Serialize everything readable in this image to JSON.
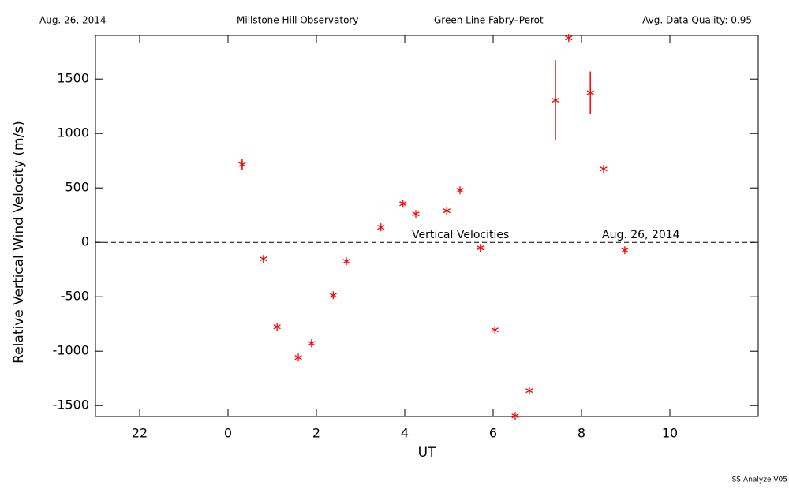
{
  "chart_data": {
    "type": "scatter",
    "header": [
      "Aug. 26, 2014",
      "Millstone Hill Observatory",
      "Green Line Fabry–Perot",
      "Avg. Data Quality: 0.95"
    ],
    "xlabel": "UT",
    "ylabel": "Relative Vertical Wind Velocity (m/s)",
    "annotations": [
      "Vertical Velocities",
      "Aug. 26, 2014"
    ],
    "footer": "SS-Analyze V05",
    "xlim": [
      -3,
      12
    ],
    "xticks": [
      {
        "value": -2,
        "label": "22"
      },
      0,
      2,
      4,
      6,
      8,
      10
    ],
    "ylim": [
      -1600,
      1900
    ],
    "yticks": [
      -1500,
      -1000,
      -500,
      0,
      500,
      1000,
      1500
    ],
    "series": [
      {
        "name": "Vertical Velocities",
        "color": "#ff0000",
        "x": [
          0.32,
          0.8,
          1.11,
          1.59,
          1.89,
          2.38,
          2.68,
          3.46,
          3.96,
          4.25,
          4.95,
          5.25,
          5.71,
          6.04,
          6.5,
          6.82,
          7.41,
          7.71,
          8.2,
          8.5,
          8.98
        ],
        "values": [
          715,
          -152,
          -775,
          -1058,
          -928,
          -486,
          -174,
          138,
          355,
          261,
          290,
          478,
          -51,
          -804,
          -1594,
          -1362,
          1305,
          1877,
          1375,
          674,
          -72
        ],
        "errors": [
          50,
          null,
          null,
          null,
          null,
          null,
          null,
          null,
          null,
          null,
          null,
          null,
          null,
          null,
          null,
          null,
          370,
          null,
          195,
          null,
          null
        ]
      }
    ]
  }
}
